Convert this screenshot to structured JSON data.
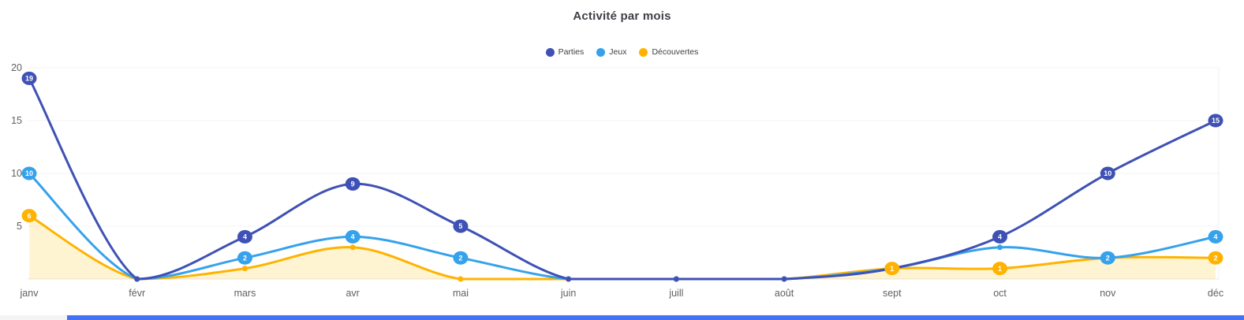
{
  "title": "Activité par mois",
  "legend": [
    {
      "label": "Parties",
      "color": "#3f51b5"
    },
    {
      "label": "Jeux",
      "color": "#36a2eb"
    },
    {
      "label": "Découvertes",
      "color": "#ffb300"
    }
  ],
  "axes": {
    "y_ticks_visible": [
      "20",
      "15",
      "10",
      "5"
    ],
    "tick_color": "#616161"
  },
  "chart_data": {
    "type": "line",
    "title": "Activité par mois",
    "categories": [
      "janv",
      "févr",
      "mars",
      "avr",
      "mai",
      "juin",
      "juill",
      "août",
      "sept",
      "oct",
      "nov",
      "déc"
    ],
    "ylim": [
      0,
      20
    ],
    "y_ticks": [
      0,
      5,
      10,
      15,
      20
    ],
    "grid": true,
    "legend_position": "top",
    "series": [
      {
        "name": "Parties",
        "color": "#3f51b5",
        "fill": false,
        "values": [
          19,
          0,
          4,
          9,
          5,
          0,
          0,
          0,
          1,
          4,
          10,
          15
        ],
        "labeled_points": [
          19,
          null,
          4,
          9,
          5,
          null,
          null,
          null,
          null,
          4,
          10,
          15
        ]
      },
      {
        "name": "Jeux",
        "color": "#36a2eb",
        "fill": false,
        "values": [
          10,
          0,
          2,
          4,
          2,
          0,
          0,
          0,
          1,
          3,
          2,
          4
        ],
        "labeled_points": [
          10,
          null,
          2,
          4,
          2,
          null,
          null,
          null,
          null,
          null,
          2,
          4
        ]
      },
      {
        "name": "Découvertes",
        "color": "#ffb300",
        "fill": true,
        "fill_color": "rgba(255,193,7,0.18)",
        "values": [
          6,
          0,
          1,
          3,
          0,
          0,
          0,
          0,
          1,
          1,
          2,
          2
        ],
        "labeled_points": [
          6,
          null,
          null,
          null,
          null,
          null,
          null,
          null,
          1,
          1,
          null,
          2
        ]
      }
    ]
  },
  "bottom_bar": {
    "color": "#4472f5",
    "pad_color": "#f4f4f4"
  }
}
